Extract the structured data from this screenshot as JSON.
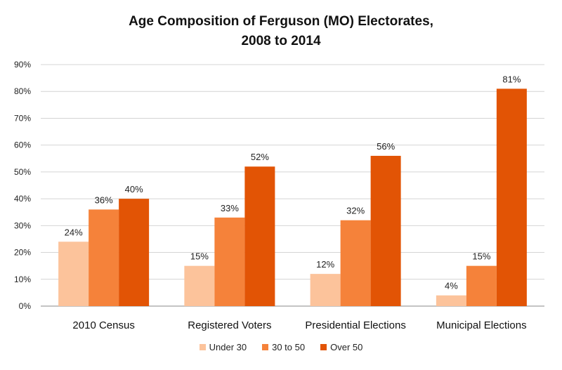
{
  "chart_data": {
    "type": "bar",
    "title": "Age Composition of Ferguson (MO) Electorates,",
    "subtitle": "2008 to 2014",
    "xlabel": "",
    "ylabel": "",
    "ylim": [
      0,
      90
    ],
    "y_ticks": [
      "0%",
      "10%",
      "20%",
      "30%",
      "40%",
      "50%",
      "60%",
      "70%",
      "80%",
      "90%"
    ],
    "grid": true,
    "legend_position": "bottom",
    "categories": [
      "2010 Census",
      "Registered Voters",
      "Presidential Elections",
      "Municipal Elections"
    ],
    "series": [
      {
        "name": "Under 30",
        "color": "#fcc39b",
        "values": [
          24,
          15,
          12,
          4
        ],
        "labels": [
          "24%",
          "15%",
          "12%",
          "4%"
        ]
      },
      {
        "name": "30 to 50",
        "color": "#f5823a",
        "values": [
          36,
          33,
          32,
          15
        ],
        "labels": [
          "36%",
          "33%",
          "32%",
          "15%"
        ]
      },
      {
        "name": "Over 50",
        "color": "#e25405",
        "values": [
          40,
          52,
          56,
          81
        ],
        "labels": [
          "40%",
          "52%",
          "56%",
          "81%"
        ]
      }
    ]
  }
}
